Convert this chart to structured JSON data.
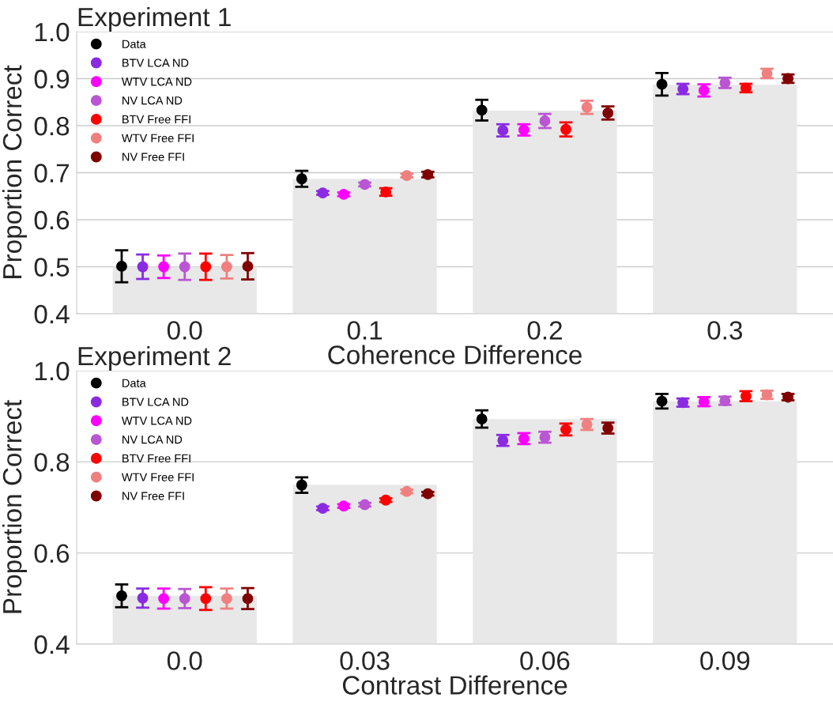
{
  "chart_data": [
    {
      "type": "scatter",
      "title": "Experiment 1",
      "xlabel": "Coherence Difference",
      "ylabel": "Proportion Correct",
      "categories": [
        "0.0",
        "0.1",
        "0.2",
        "0.3"
      ],
      "ylim": [
        0.4,
        1.0
      ],
      "yticks": [
        0.4,
        0.5,
        0.6,
        0.7,
        0.8,
        0.9,
        {
          "value": 1.0,
          "label": "1.0"
        }
      ],
      "grid": "y",
      "legend": "top left",
      "marker": "circle",
      "series": [
        {
          "type": "bar",
          "color": "#e8e8e8",
          "values": [
            0.5,
            0.687,
            0.832,
            0.887
          ]
        },
        {
          "name": "Data",
          "color": "#000000",
          "values": [
            0.501,
            0.687,
            0.833,
            0.888
          ],
          "errors": [
            0.034,
            0.017,
            0.022,
            0.024
          ]
        },
        {
          "name": "BTV LCA ND",
          "color": "#8a2be2",
          "values": [
            0.5,
            0.657,
            0.79,
            0.878
          ],
          "errors": [
            0.026,
            0.004,
            0.013,
            0.011
          ]
        },
        {
          "name": "WTV LCA ND",
          "color": "#ff00ff",
          "values": [
            0.5,
            0.654,
            0.791,
            0.875
          ],
          "errors": [
            0.024,
            0.004,
            0.012,
            0.013
          ]
        },
        {
          "name": "NV LCA ND",
          "color": "#ba55d3",
          "values": [
            0.5,
            0.675,
            0.81,
            0.891
          ],
          "errors": [
            0.028,
            0.004,
            0.015,
            0.011
          ]
        },
        {
          "name": "BTV Free FFI",
          "color": "#ff0000",
          "values": [
            0.5,
            0.659,
            0.792,
            0.88
          ],
          "errors": [
            0.028,
            0.008,
            0.015,
            0.009
          ]
        },
        {
          "name": "WTV Free FFI",
          "color": "#f08080",
          "values": [
            0.5,
            0.694,
            0.839,
            0.911
          ],
          "errors": [
            0.025,
            0.004,
            0.014,
            0.01
          ]
        },
        {
          "name": "NV Free FFI",
          "color": "#800000",
          "values": [
            0.501,
            0.696,
            0.827,
            0.9
          ],
          "errors": [
            0.028,
            0.006,
            0.014,
            0.009
          ]
        }
      ]
    },
    {
      "type": "scatter",
      "title": "Experiment 2",
      "xlabel": "Contrast Difference",
      "ylabel": "Proportion Correct",
      "categories": [
        "0.0",
        "0.03",
        "0.06",
        "0.09"
      ],
      "ylim": [
        0.4,
        1.0
      ],
      "yticks": [
        0.4,
        0.6,
        0.8,
        {
          "value": 1.0,
          "label": "1.0"
        }
      ],
      "grid": "y",
      "legend": "top left",
      "marker": "circle",
      "series": [
        {
          "type": "bar",
          "color": "#e8e8e8",
          "values": [
            0.506,
            0.75,
            0.894,
            0.933
          ]
        },
        {
          "name": "Data",
          "color": "#000000",
          "values": [
            0.506,
            0.749,
            0.894,
            0.933
          ],
          "errors": [
            0.025,
            0.017,
            0.019,
            0.016
          ]
        },
        {
          "name": "BTV LCA ND",
          "color": "#8a2be2",
          "values": [
            0.501,
            0.698,
            0.847,
            0.93
          ],
          "errors": [
            0.021,
            0.004,
            0.012,
            0.009
          ]
        },
        {
          "name": "WTV LCA ND",
          "color": "#ff00ff",
          "values": [
            0.5,
            0.703,
            0.851,
            0.932
          ],
          "errors": [
            0.022,
            0.004,
            0.012,
            0.01
          ]
        },
        {
          "name": "NV LCA ND",
          "color": "#ba55d3",
          "values": [
            0.5,
            0.706,
            0.854,
            0.934
          ],
          "errors": [
            0.021,
            0.004,
            0.012,
            0.009
          ]
        },
        {
          "name": "BTV Free FFI",
          "color": "#ff0000",
          "values": [
            0.5,
            0.716,
            0.871,
            0.944
          ],
          "errors": [
            0.025,
            0.004,
            0.013,
            0.011
          ]
        },
        {
          "name": "WTV Free FFI",
          "color": "#f08080",
          "values": [
            0.5,
            0.735,
            0.882,
            0.947
          ],
          "errors": [
            0.022,
            0.004,
            0.012,
            0.009
          ]
        },
        {
          "name": "NV Free FFI",
          "color": "#800000",
          "values": [
            0.5,
            0.73,
            0.874,
            0.942
          ],
          "errors": [
            0.023,
            0.004,
            0.012,
            0.007
          ]
        }
      ]
    }
  ]
}
